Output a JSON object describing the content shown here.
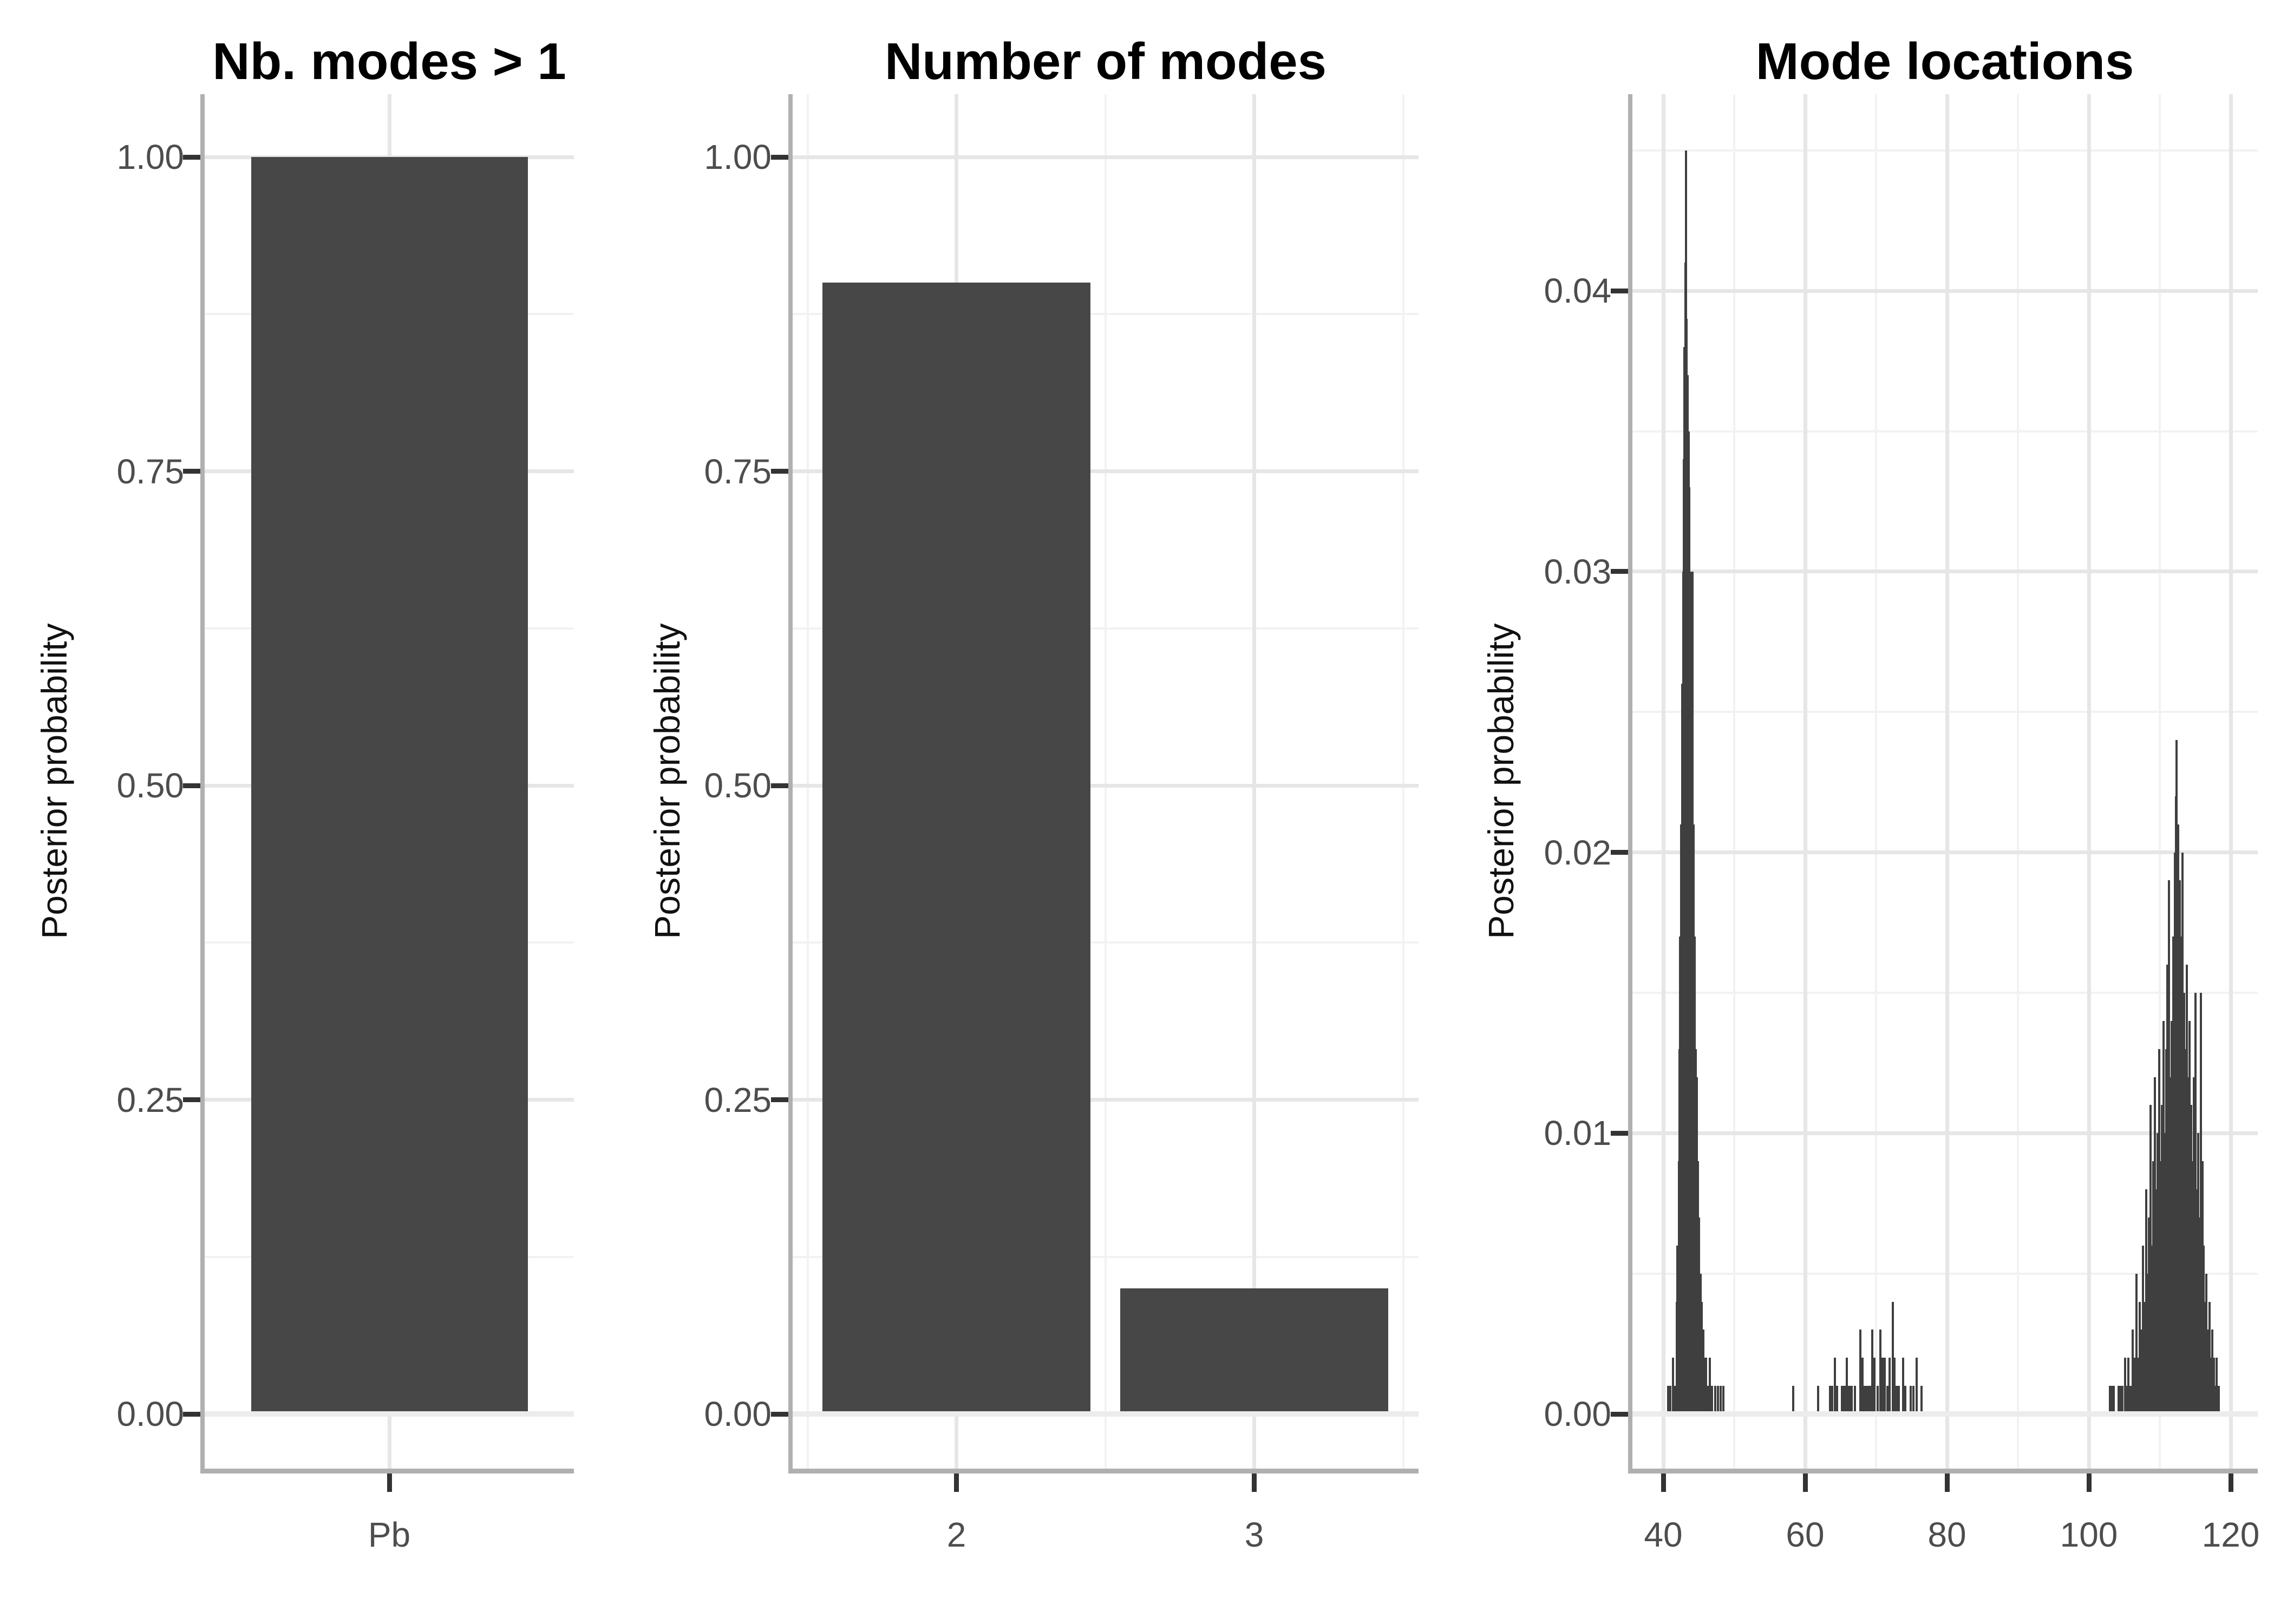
{
  "colors": {
    "background": "#ffffff",
    "bar_fill": "#474747",
    "spike_color": "#3f3f3f",
    "grid_major": "#e6e6e6",
    "grid_minor": "#f2f2f2",
    "zero_line": "#ececec",
    "axis_line": "#b0b0b0",
    "tick_mark": "#333333",
    "tick_label": "#4d4d4d",
    "title_color": "#000000"
  },
  "chart_data": [
    {
      "type": "bar",
      "title": "Nb. modes > 1",
      "xlabel": "",
      "ylabel": "Posterior probability",
      "categories": [
        "Pb"
      ],
      "values": [
        1.0
      ],
      "ylim": [
        0,
        1.05
      ],
      "yticks": [
        1.0,
        0.75,
        0.5,
        0.25,
        0.0
      ],
      "ytick_labels": [
        "1.00",
        "0.75",
        "0.50",
        "0.25",
        "0.00"
      ],
      "grid": "major+minor horizontal, major vertical at category center",
      "legend": "none"
    },
    {
      "type": "bar",
      "title": "Number of modes",
      "xlabel": "",
      "ylabel": "Posterior probability",
      "categories": [
        "2",
        "3"
      ],
      "values": [
        0.9,
        0.1
      ],
      "ylim": [
        0,
        1.05
      ],
      "yticks": [
        1.0,
        0.75,
        0.5,
        0.25,
        0.0
      ],
      "ytick_labels": [
        "1.00",
        "0.75",
        "0.50",
        "0.25",
        "0.00"
      ],
      "grid": "major+minor horizontal, major vertical at bars, minor vertical between",
      "legend": "none"
    },
    {
      "type": "bar",
      "subtype": "spike-histogram",
      "title": "Mode locations",
      "xlabel": "",
      "ylabel": "Posterior probability",
      "xlim": [
        35.7,
        123.2
      ],
      "ylim": [
        0,
        0.047
      ],
      "xticks": [
        40,
        60,
        80,
        100,
        120
      ],
      "xtick_labels": [
        "40",
        "60",
        "80",
        "100",
        "120"
      ],
      "yticks": [
        0.04,
        0.03,
        0.02,
        0.01,
        0.0
      ],
      "ytick_labels": [
        "0.04",
        "0.03",
        "0.02",
        "0.01",
        "0.00"
      ],
      "grid": "major+minor both axes",
      "legend": "none",
      "spike_unit": 0.001,
      "spikes_x_h_thousandths": [
        [
          40.7,
          1
        ],
        [
          41.0,
          1
        ],
        [
          41.4,
          2
        ],
        [
          41.6,
          1
        ],
        [
          41.9,
          4
        ],
        [
          42.0,
          6
        ],
        [
          42.2,
          9
        ],
        [
          42.3,
          13
        ],
        [
          42.4,
          17
        ],
        [
          42.5,
          21
        ],
        [
          42.65,
          26
        ],
        [
          42.8,
          30
        ],
        [
          42.9,
          34
        ],
        [
          43.0,
          38
        ],
        [
          43.1,
          41
        ],
        [
          43.2,
          45
        ],
        [
          43.3,
          39
        ],
        [
          43.45,
          37
        ],
        [
          43.55,
          35
        ],
        [
          43.7,
          33
        ],
        [
          43.8,
          30
        ],
        [
          43.9,
          28
        ],
        [
          44.0,
          25
        ],
        [
          44.15,
          30
        ],
        [
          44.3,
          21
        ],
        [
          44.45,
          17
        ],
        [
          44.6,
          13
        ],
        [
          44.75,
          12
        ],
        [
          44.9,
          9
        ],
        [
          45.05,
          7
        ],
        [
          45.25,
          5
        ],
        [
          45.45,
          4
        ],
        [
          45.65,
          3
        ],
        [
          45.85,
          2
        ],
        [
          46.05,
          2
        ],
        [
          46.3,
          1
        ],
        [
          46.6,
          2
        ],
        [
          46.9,
          1
        ],
        [
          47.3,
          1
        ],
        [
          47.7,
          1
        ],
        [
          48.1,
          1
        ],
        [
          48.5,
          1
        ],
        [
          58.3,
          1
        ],
        [
          61.8,
          1
        ],
        [
          63.5,
          1
        ],
        [
          63.8,
          1
        ],
        [
          64.2,
          2
        ],
        [
          64.5,
          1
        ],
        [
          65.2,
          1
        ],
        [
          65.5,
          1
        ],
        [
          65.7,
          1
        ],
        [
          65.9,
          2
        ],
        [
          66.1,
          1
        ],
        [
          66.3,
          1
        ],
        [
          66.6,
          1
        ],
        [
          67.0,
          1
        ],
        [
          67.8,
          3
        ],
        [
          68.1,
          2
        ],
        [
          68.3,
          1
        ],
        [
          68.6,
          1
        ],
        [
          68.8,
          1
        ],
        [
          69.0,
          1
        ],
        [
          69.3,
          1
        ],
        [
          69.5,
          3
        ],
        [
          69.8,
          2
        ],
        [
          70.2,
          1
        ],
        [
          70.6,
          3
        ],
        [
          70.9,
          2
        ],
        [
          71.2,
          2
        ],
        [
          71.6,
          1
        ],
        [
          71.9,
          2
        ],
        [
          72.4,
          4
        ],
        [
          72.6,
          2
        ],
        [
          72.9,
          1
        ],
        [
          73.2,
          1
        ],
        [
          73.8,
          2
        ],
        [
          74.1,
          1
        ],
        [
          74.9,
          1
        ],
        [
          75.3,
          1
        ],
        [
          75.7,
          2
        ],
        [
          76.4,
          1
        ],
        [
          103.0,
          1
        ],
        [
          103.2,
          1
        ],
        [
          103.5,
          1
        ],
        [
          104.2,
          1
        ],
        [
          104.4,
          1
        ],
        [
          104.7,
          1
        ],
        [
          105.1,
          2
        ],
        [
          105.4,
          1
        ],
        [
          105.6,
          2
        ],
        [
          105.9,
          1
        ],
        [
          106.2,
          3
        ],
        [
          106.4,
          2
        ],
        [
          106.7,
          5
        ],
        [
          107.0,
          2
        ],
        [
          107.2,
          4
        ],
        [
          107.4,
          3
        ],
        [
          107.6,
          6
        ],
        [
          107.9,
          4
        ],
        [
          108.1,
          8
        ],
        [
          108.3,
          5
        ],
        [
          108.5,
          7
        ],
        [
          108.7,
          11
        ],
        [
          108.9,
          6
        ],
        [
          109.1,
          9
        ],
        [
          109.3,
          12
        ],
        [
          109.5,
          8
        ],
        [
          109.7,
          10
        ],
        [
          109.9,
          13
        ],
        [
          110.1,
          9
        ],
        [
          110.3,
          11
        ],
        [
          110.5,
          14
        ],
        [
          110.7,
          10
        ],
        [
          110.9,
          13
        ],
        [
          111.1,
          16
        ],
        [
          111.3,
          19
        ],
        [
          111.5,
          12
        ],
        [
          111.7,
          14
        ],
        [
          111.9,
          17
        ],
        [
          112.1,
          20
        ],
        [
          112.3,
          22
        ],
        [
          112.4,
          24
        ],
        [
          112.6,
          21
        ],
        [
          112.8,
          19
        ],
        [
          113.0,
          17
        ],
        [
          113.2,
          20
        ],
        [
          113.4,
          15
        ],
        [
          113.6,
          13
        ],
        [
          113.8,
          16
        ],
        [
          114.0,
          12
        ],
        [
          114.2,
          14
        ],
        [
          114.4,
          11
        ],
        [
          114.6,
          9
        ],
        [
          114.8,
          12
        ],
        [
          115.0,
          15
        ],
        [
          115.2,
          8
        ],
        [
          115.4,
          10
        ],
        [
          115.6,
          7
        ],
        [
          115.8,
          15
        ],
        [
          116.0,
          9
        ],
        [
          116.2,
          6
        ],
        [
          116.4,
          4
        ],
        [
          116.6,
          5
        ],
        [
          116.8,
          3
        ],
        [
          117.0,
          4
        ],
        [
          117.2,
          2
        ],
        [
          117.4,
          3
        ],
        [
          117.6,
          2
        ],
        [
          117.8,
          1
        ],
        [
          118.0,
          2
        ],
        [
          118.3,
          1
        ]
      ]
    }
  ]
}
